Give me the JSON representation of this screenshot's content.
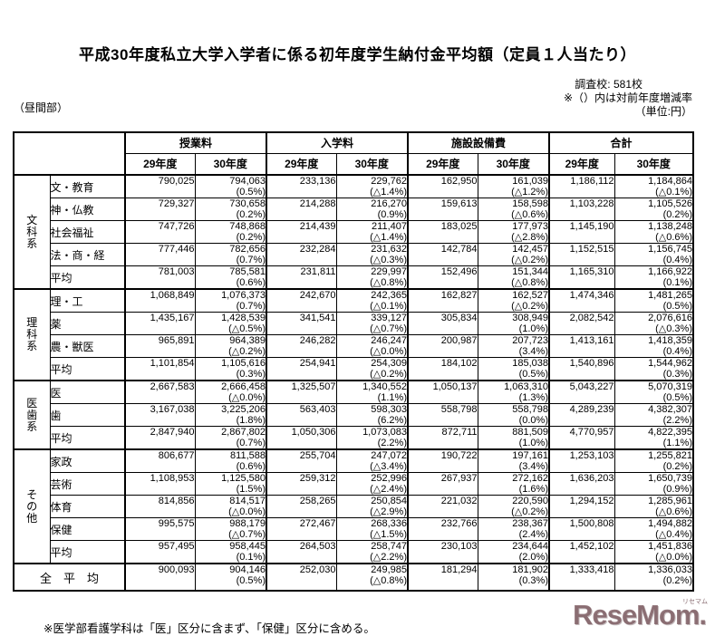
{
  "title": "平成30年度私立大学入学者に係る初年度学生納付金平均額（定員１人当たり）",
  "header": {
    "daytime": "（昼間部）",
    "survey": "調査校: 581校",
    "note": "※（）内は対前年度増減率",
    "unit": "（単位:円）"
  },
  "table": {
    "col_groups": [
      "授業料",
      "入学料",
      "施設設備費",
      "合計"
    ],
    "year_labels": [
      "29年度",
      "30年度"
    ],
    "sections": [
      {
        "group": "文科系",
        "rows": [
          {
            "label": "文・教育",
            "cells": [
              {
                "v": "790,025"
              },
              {
                "v": "794,063",
                "p": "(0.5%)"
              },
              {
                "v": "233,136"
              },
              {
                "v": "229,762",
                "p": "(△1.4%)"
              },
              {
                "v": "162,950"
              },
              {
                "v": "161,039",
                "p": "(△1.2%)"
              },
              {
                "v": "1,186,112"
              },
              {
                "v": "1,184,864",
                "p": "(△0.1%)"
              }
            ]
          },
          {
            "label": "神・仏教",
            "cells": [
              {
                "v": "729,327"
              },
              {
                "v": "730,658",
                "p": "(0.2%)"
              },
              {
                "v": "214,288"
              },
              {
                "v": "216,270",
                "p": "(0.9%)"
              },
              {
                "v": "159,613"
              },
              {
                "v": "158,598",
                "p": "(△0.6%)"
              },
              {
                "v": "1,103,228"
              },
              {
                "v": "1,105,526",
                "p": "(0.2%)"
              }
            ]
          },
          {
            "label": "社会福祉",
            "cells": [
              {
                "v": "747,726"
              },
              {
                "v": "748,868",
                "p": "(0.2%)"
              },
              {
                "v": "214,439"
              },
              {
                "v": "211,407",
                "p": "(△1.4%)"
              },
              {
                "v": "183,025"
              },
              {
                "v": "177,973",
                "p": "(△2.8%)"
              },
              {
                "v": "1,145,190"
              },
              {
                "v": "1,138,248",
                "p": "(△0.6%)"
              }
            ]
          },
          {
            "label": "法・商・経",
            "cells": [
              {
                "v": "777,446"
              },
              {
                "v": "782,656",
                "p": "(0.7%)"
              },
              {
                "v": "232,284"
              },
              {
                "v": "231,632",
                "p": "(△0.3%)"
              },
              {
                "v": "142,784"
              },
              {
                "v": "142,457",
                "p": "(△0.2%)"
              },
              {
                "v": "1,152,515"
              },
              {
                "v": "1,156,745",
                "p": "(0.4%)"
              }
            ]
          },
          {
            "label": "平均",
            "cells": [
              {
                "v": "781,003"
              },
              {
                "v": "785,581",
                "p": "(0.6%)"
              },
              {
                "v": "231,811"
              },
              {
                "v": "229,997",
                "p": "(△0.8%)"
              },
              {
                "v": "152,496"
              },
              {
                "v": "151,344",
                "p": "(△0.8%)"
              },
              {
                "v": "1,165,310"
              },
              {
                "v": "1,166,922",
                "p": "(0.1%)"
              }
            ]
          }
        ]
      },
      {
        "group": "理科系",
        "rows": [
          {
            "label": "理・工",
            "cells": [
              {
                "v": "1,068,849"
              },
              {
                "v": "1,076,373",
                "p": "(0.7%)"
              },
              {
                "v": "242,670"
              },
              {
                "v": "242,365",
                "p": "(△0.1%)"
              },
              {
                "v": "162,827"
              },
              {
                "v": "162,527",
                "p": "(△0.2%)"
              },
              {
                "v": "1,474,346"
              },
              {
                "v": "1,481,265",
                "p": "(0.5%)"
              }
            ]
          },
          {
            "label": "薬",
            "cells": [
              {
                "v": "1,435,167"
              },
              {
                "v": "1,428,539",
                "p": "(△0.5%)"
              },
              {
                "v": "341,541"
              },
              {
                "v": "339,127",
                "p": "(△0.7%)"
              },
              {
                "v": "305,834"
              },
              {
                "v": "308,949",
                "p": "(1.0%)"
              },
              {
                "v": "2,082,542"
              },
              {
                "v": "2,076,616",
                "p": "(△0.3%)"
              }
            ]
          },
          {
            "label": "農・獣医",
            "cells": [
              {
                "v": "965,891"
              },
              {
                "v": "964,389",
                "p": "(△0.2%)"
              },
              {
                "v": "246,282"
              },
              {
                "v": "246,247",
                "p": "(△0.0%)"
              },
              {
                "v": "200,987"
              },
              {
                "v": "207,723",
                "p": "(3.4%)"
              },
              {
                "v": "1,413,161"
              },
              {
                "v": "1,418,359",
                "p": "(0.4%)"
              }
            ]
          },
          {
            "label": "平均",
            "cells": [
              {
                "v": "1,101,854"
              },
              {
                "v": "1,105,616",
                "p": "(0.3%)"
              },
              {
                "v": "254,941"
              },
              {
                "v": "254,309",
                "p": "(△0.2%)"
              },
              {
                "v": "184,102"
              },
              {
                "v": "185,038",
                "p": "(0.5%)"
              },
              {
                "v": "1,540,896"
              },
              {
                "v": "1,544,962",
                "p": "(0.3%)"
              }
            ]
          }
        ]
      },
      {
        "group": "医歯系",
        "rows": [
          {
            "label": "医",
            "cells": [
              {
                "v": "2,667,583"
              },
              {
                "v": "2,666,458",
                "p": "(△0.0%)"
              },
              {
                "v": "1,325,507"
              },
              {
                "v": "1,340,552",
                "p": "(1.1%)"
              },
              {
                "v": "1,050,137"
              },
              {
                "v": "1,063,310",
                "p": "(1.3%)"
              },
              {
                "v": "5,043,227"
              },
              {
                "v": "5,070,319",
                "p": "(0.5%)"
              }
            ]
          },
          {
            "label": "歯",
            "cells": [
              {
                "v": "3,167,038"
              },
              {
                "v": "3,225,206",
                "p": "(1.8%)"
              },
              {
                "v": "563,403"
              },
              {
                "v": "598,303",
                "p": "(6.2%)"
              },
              {
                "v": "558,798"
              },
              {
                "v": "558,798",
                "p": "(0.0%)"
              },
              {
                "v": "4,289,239"
              },
              {
                "v": "4,382,307",
                "p": "(2.2%)"
              }
            ]
          },
          {
            "label": "平均",
            "cells": [
              {
                "v": "2,847,940"
              },
              {
                "v": "2,867,802",
                "p": "(0.7%)"
              },
              {
                "v": "1,050,306"
              },
              {
                "v": "1,073,083",
                "p": "(2.2%)"
              },
              {
                "v": "872,711"
              },
              {
                "v": "881,509",
                "p": "(1.0%)"
              },
              {
                "v": "4,770,957"
              },
              {
                "v": "4,822,395",
                "p": "(1.1%)"
              }
            ]
          }
        ]
      },
      {
        "group": "その他",
        "rows": [
          {
            "label": "家政",
            "cells": [
              {
                "v": "806,677"
              },
              {
                "v": "811,588",
                "p": "(0.6%)"
              },
              {
                "v": "255,704"
              },
              {
                "v": "247,072",
                "p": "(△3.4%)"
              },
              {
                "v": "190,722"
              },
              {
                "v": "197,161",
                "p": "(3.4%)"
              },
              {
                "v": "1,253,103"
              },
              {
                "v": "1,255,821",
                "p": "(0.2%)"
              }
            ]
          },
          {
            "label": "芸術",
            "cells": [
              {
                "v": "1,108,953"
              },
              {
                "v": "1,125,580",
                "p": "(1.5%)"
              },
              {
                "v": "259,312"
              },
              {
                "v": "252,996",
                "p": "(△2.4%)"
              },
              {
                "v": "267,937"
              },
              {
                "v": "272,162",
                "p": "(1.6%)"
              },
              {
                "v": "1,636,203"
              },
              {
                "v": "1,650,739",
                "p": "(0.9%)"
              }
            ]
          },
          {
            "label": "体育",
            "cells": [
              {
                "v": "814,856"
              },
              {
                "v": "814,517",
                "p": "(△0.0%)"
              },
              {
                "v": "258,265"
              },
              {
                "v": "250,854",
                "p": "(△2.9%)"
              },
              {
                "v": "221,032"
              },
              {
                "v": "220,590",
                "p": "(△0.2%)"
              },
              {
                "v": "1,294,152"
              },
              {
                "v": "1,285,961",
                "p": "(△0.6%)"
              }
            ]
          },
          {
            "label": "保健",
            "cells": [
              {
                "v": "995,575"
              },
              {
                "v": "988,179",
                "p": "(△0.7%)"
              },
              {
                "v": "272,467"
              },
              {
                "v": "268,336",
                "p": "(△1.5%)"
              },
              {
                "v": "232,766"
              },
              {
                "v": "238,367",
                "p": "(2.4%)"
              },
              {
                "v": "1,500,808"
              },
              {
                "v": "1,494,882",
                "p": "(△0.4%)"
              }
            ]
          },
          {
            "label": "平均",
            "cells": [
              {
                "v": "957,495"
              },
              {
                "v": "958,445",
                "p": "(0.1%)"
              },
              {
                "v": "264,503"
              },
              {
                "v": "258,747",
                "p": "(△2.2%)"
              },
              {
                "v": "230,103"
              },
              {
                "v": "234,644",
                "p": "(2.0%)"
              },
              {
                "v": "1,452,102"
              },
              {
                "v": "1,451,836",
                "p": "(△0.0%)"
              }
            ]
          }
        ]
      }
    ],
    "total_row": {
      "label": "全　平　均",
      "cells": [
        {
          "v": "900,093"
        },
        {
          "v": "904,146",
          "p": "(0.5%)"
        },
        {
          "v": "252,030"
        },
        {
          "v": "249,985",
          "p": "(△0.8%)"
        },
        {
          "v": "181,294"
        },
        {
          "v": "181,902",
          "p": "(0.3%)"
        },
        {
          "v": "1,333,418"
        },
        {
          "v": "1,336,033",
          "p": "(0.2%)"
        }
      ]
    },
    "footnote": "※医学部看護学科は「医」区分に含まず、「保健」区分に含める。"
  },
  "watermark": {
    "logo": "ReseMom.",
    "sub": "リセマム"
  }
}
